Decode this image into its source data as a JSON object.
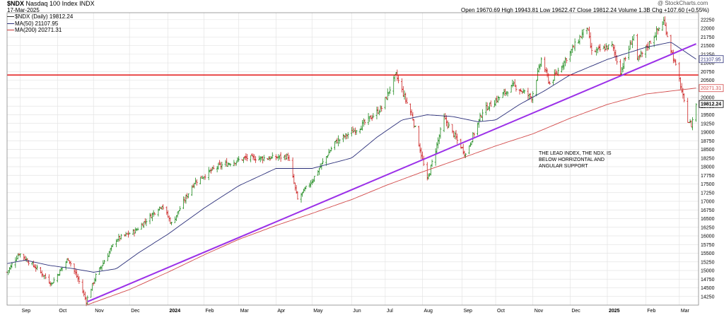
{
  "header": {
    "symbol": "$NDX",
    "name": "Nasdaq 100 Index",
    "exchange": "INDX",
    "date": "17-Mar-2025",
    "copyright": "@ StockCharts.com",
    "ohlc_text": "Open 19670.69  High 19943.81  Low 19622.47  Close 19812.24  Volume 1.3B  Chg +107.60 (+0.55%)"
  },
  "legend": [
    {
      "label": "$NDX (Daily) 19812.24",
      "color": "#333333"
    },
    {
      "label": "MA(50) 21107.95",
      "color": "#2b2f7a"
    },
    {
      "label": "MA(200) 20271.31",
      "color": "#cc3333"
    }
  ],
  "colors": {
    "up": "#1e8a1e",
    "down": "#cc2222",
    "ma50": "#2b2f7a",
    "ma200": "#d24a4a",
    "trend": "#9b30e8",
    "support": "#e00000",
    "grid": "#e4e4e4"
  },
  "annotation": [
    "THE LEAD INDEX, THE NDX, IS",
    "BELOW HORRIZONTAL AND",
    "ANGULAR SUPPORT"
  ],
  "chart_data": {
    "type": "ohlc",
    "x_labels": [
      {
        "label": "Sep",
        "date": "2023-09-01"
      },
      {
        "label": "Oct",
        "date": "2023-10-02"
      },
      {
        "label": "Nov",
        "date": "2023-11-01"
      },
      {
        "label": "Dec",
        "date": "2023-12-01"
      },
      {
        "label": "2024",
        "date": "2024-01-02"
      },
      {
        "label": "Feb",
        "date": "2024-02-01"
      },
      {
        "label": "Mar",
        "date": "2024-03-01"
      },
      {
        "label": "Apr",
        "date": "2024-04-01"
      },
      {
        "label": "May",
        "date": "2024-05-01"
      },
      {
        "label": "Jun",
        "date": "2024-06-03"
      },
      {
        "label": "Jul",
        "date": "2024-07-01"
      },
      {
        "label": "Aug",
        "date": "2024-08-01"
      },
      {
        "label": "Sep",
        "date": "2024-09-03"
      },
      {
        "label": "Oct",
        "date": "2024-10-01"
      },
      {
        "label": "Nov",
        "date": "2024-11-01"
      },
      {
        "label": "Dec",
        "date": "2024-12-02"
      },
      {
        "label": "2025",
        "date": "2025-01-02"
      },
      {
        "label": "Feb",
        "date": "2025-02-03"
      },
      {
        "label": "Mar",
        "date": "2025-03-03"
      }
    ],
    "y_ticks": [
      14250,
      14500,
      14750,
      15000,
      15250,
      15500,
      15750,
      16000,
      16250,
      16500,
      16750,
      17000,
      17250,
      17500,
      17750,
      18000,
      18250,
      18500,
      18750,
      19000,
      19250,
      19500,
      19750,
      20000,
      20250,
      20500,
      20750,
      21000,
      21250,
      21500,
      21750,
      22000,
      22250
    ],
    "ylim": [
      14000,
      22450
    ],
    "price_path": [
      {
        "date": "2023-08-21",
        "close": 14950
      },
      {
        "date": "2023-08-31",
        "close": 15500
      },
      {
        "date": "2023-09-15",
        "close": 15050
      },
      {
        "date": "2023-09-27",
        "close": 14620
      },
      {
        "date": "2023-10-11",
        "close": 15350
      },
      {
        "date": "2023-10-20",
        "close": 14680
      },
      {
        "date": "2023-10-26",
        "close": 14110
      },
      {
        "date": "2023-11-03",
        "close": 14850
      },
      {
        "date": "2023-11-20",
        "close": 15900
      },
      {
        "date": "2023-12-06",
        "close": 16150
      },
      {
        "date": "2023-12-28",
        "close": 16900
      },
      {
        "date": "2024-01-05",
        "close": 16350
      },
      {
        "date": "2024-01-24",
        "close": 17550
      },
      {
        "date": "2024-02-12",
        "close": 18000
      },
      {
        "date": "2024-03-07",
        "close": 18250
      },
      {
        "date": "2024-03-27",
        "close": 18250
      },
      {
        "date": "2024-04-11",
        "close": 18300
      },
      {
        "date": "2024-04-19",
        "close": 17050
      },
      {
        "date": "2024-05-02",
        "close": 17650
      },
      {
        "date": "2024-05-20",
        "close": 18700
      },
      {
        "date": "2024-06-10",
        "close": 19150
      },
      {
        "date": "2024-06-28",
        "close": 19700
      },
      {
        "date": "2024-07-10",
        "close": 20650
      },
      {
        "date": "2024-07-24",
        "close": 19400
      },
      {
        "date": "2024-08-05",
        "close": 17600
      },
      {
        "date": "2024-08-19",
        "close": 19400
      },
      {
        "date": "2024-09-06",
        "close": 18350
      },
      {
        "date": "2024-09-20",
        "close": 19600
      },
      {
        "date": "2024-10-16",
        "close": 20350
      },
      {
        "date": "2024-10-31",
        "close": 20000
      },
      {
        "date": "2024-11-08",
        "close": 21100
      },
      {
        "date": "2024-11-15",
        "close": 20400
      },
      {
        "date": "2024-12-16",
        "close": 22050
      },
      {
        "date": "2024-12-20",
        "close": 21300
      },
      {
        "date": "2025-01-06",
        "close": 21500
      },
      {
        "date": "2025-01-13",
        "close": 20750
      },
      {
        "date": "2025-01-24",
        "close": 21800
      },
      {
        "date": "2025-01-27",
        "close": 21050
      },
      {
        "date": "2025-02-18",
        "close": 22200
      },
      {
        "date": "2025-02-24",
        "close": 21400
      },
      {
        "date": "2025-03-03",
        "close": 20500
      },
      {
        "date": "2025-03-10",
        "close": 19350
      },
      {
        "date": "2025-03-13",
        "close": 19200
      },
      {
        "date": "2025-03-17",
        "close": 19812.24
      }
    ],
    "ma50_path": [
      {
        "date": "2023-08-21",
        "value": 15200
      },
      {
        "date": "2023-09-05",
        "value": 15300
      },
      {
        "date": "2023-09-25",
        "value": 15150
      },
      {
        "date": "2023-10-16",
        "value": 15050
      },
      {
        "date": "2023-11-01",
        "value": 14950
      },
      {
        "date": "2023-11-20",
        "value": 15050
      },
      {
        "date": "2023-12-08",
        "value": 15500
      },
      {
        "date": "2024-01-02",
        "value": 16050
      },
      {
        "date": "2024-02-01",
        "value": 16800
      },
      {
        "date": "2024-03-01",
        "value": 17450
      },
      {
        "date": "2024-04-01",
        "value": 17950
      },
      {
        "date": "2024-05-01",
        "value": 17950
      },
      {
        "date": "2024-06-03",
        "value": 18250
      },
      {
        "date": "2024-06-24",
        "value": 18850
      },
      {
        "date": "2024-07-15",
        "value": 19350
      },
      {
        "date": "2024-08-05",
        "value": 19500
      },
      {
        "date": "2024-08-26",
        "value": 19450
      },
      {
        "date": "2024-09-16",
        "value": 19300
      },
      {
        "date": "2024-10-01",
        "value": 19350
      },
      {
        "date": "2024-10-21",
        "value": 19800
      },
      {
        "date": "2024-11-11",
        "value": 20200
      },
      {
        "date": "2024-12-02",
        "value": 20650
      },
      {
        "date": "2025-01-02",
        "value": 21100
      },
      {
        "date": "2025-02-03",
        "value": 21450
      },
      {
        "date": "2025-02-24",
        "value": 21600
      },
      {
        "date": "2025-03-17",
        "value": 21107.95
      }
    ],
    "ma200_path": [
      {
        "date": "2023-10-26",
        "value": 14000
      },
      {
        "date": "2023-12-01",
        "value": 14450
      },
      {
        "date": "2024-01-02",
        "value": 14950
      },
      {
        "date": "2024-02-01",
        "value": 15450
      },
      {
        "date": "2024-03-01",
        "value": 15900
      },
      {
        "date": "2024-04-01",
        "value": 16300
      },
      {
        "date": "2024-05-01",
        "value": 16650
      },
      {
        "date": "2024-06-03",
        "value": 17050
      },
      {
        "date": "2024-07-01",
        "value": 17450
      },
      {
        "date": "2024-08-01",
        "value": 17850
      },
      {
        "date": "2024-09-03",
        "value": 18250
      },
      {
        "date": "2024-10-01",
        "value": 18600
      },
      {
        "date": "2024-11-01",
        "value": 18950
      },
      {
        "date": "2024-12-02",
        "value": 19400
      },
      {
        "date": "2025-01-02",
        "value": 19800
      },
      {
        "date": "2025-02-03",
        "value": 20100
      },
      {
        "date": "2025-03-17",
        "value": 20271.31
      }
    ],
    "horizontal_support": 20650,
    "trendline": [
      {
        "date": "2023-10-27",
        "value": 14100
      },
      {
        "date": "2025-03-17",
        "value": 21550
      }
    ],
    "last_values": [
      {
        "key": "ma50",
        "value": 21107.95,
        "text": "21107.95"
      },
      {
        "key": "ma200",
        "value": 20271.31,
        "text": "20271.31"
      },
      {
        "key": "close",
        "value": 19812.24,
        "text": "19812.24"
      }
    ]
  }
}
